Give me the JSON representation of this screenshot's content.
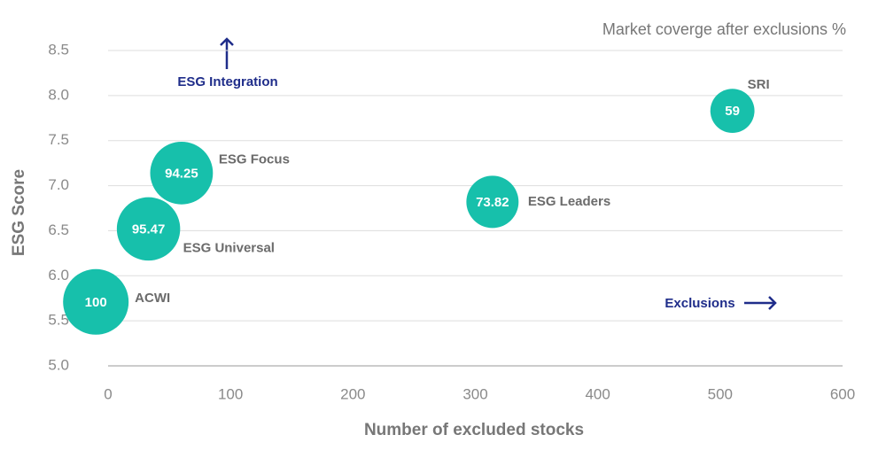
{
  "chart_data": {
    "type": "bubble",
    "subtitle": "Market coverge after exclusions %",
    "x_label": "Number of excluded stocks",
    "y_label": "ESG Score",
    "annotations": [
      "ESG Integration",
      "Exclusions"
    ],
    "names": [
      "ACWI",
      "ESG Universal",
      "ESG Focus",
      "ESG Leaders",
      "SRI"
    ],
    "x": [
      -10,
      33,
      60,
      314,
      510
    ],
    "y": [
      5.71,
      6.52,
      7.14,
      6.82,
      7.83
    ],
    "sizes": [
      100,
      95.47,
      94.25,
      73.82,
      59
    ],
    "color": "#17c0ab",
    "xlim": [
      0,
      600
    ],
    "xticks": [
      0,
      100,
      200,
      300,
      400,
      500,
      600
    ],
    "ylim": [
      5,
      8.5
    ],
    "yticks": [
      {
        "value": 5,
        "label": "5.0"
      },
      5.5,
      {
        "value": 6,
        "label": "6.0"
      },
      6.5,
      {
        "value": 7,
        "label": "7.0"
      },
      7.5,
      {
        "value": 8,
        "label": "8.0"
      },
      8.5
    ],
    "grid": true
  }
}
